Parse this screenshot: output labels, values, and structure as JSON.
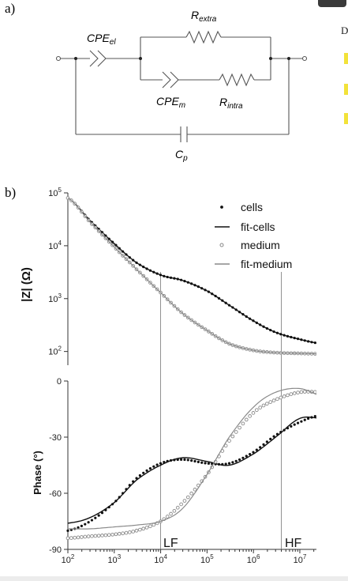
{
  "panel_a": {
    "label": "a)",
    "cpe_el": {
      "main": "CPE",
      "sub": "el"
    },
    "r_extra": {
      "main": "R",
      "sub": "extra"
    },
    "cpe_m": {
      "main": "CPE",
      "sub": "m"
    },
    "r_intra": {
      "main": "R",
      "sub": "intra"
    },
    "c_p": {
      "main": "C",
      "sub": "p"
    }
  },
  "panel_b": {
    "label": "b)"
  },
  "markers": {
    "lf": "LF",
    "hf": "HF"
  },
  "side": {
    "letter": "D"
  },
  "colors": {
    "cells": "#111111",
    "medium": "#8a8a8a",
    "fit_cells": "#111111",
    "fit_medium": "#8a8a8a"
  },
  "chart_data": [
    {
      "type": "scatter",
      "xlabel": "",
      "ylabel": "|Z| (Ω)",
      "x_scale": "log",
      "y_scale": "log",
      "xlim": [
        100,
        30000000
      ],
      "ylim": [
        50,
        100000
      ],
      "yticks": [
        "10^5",
        "10^4",
        "10^3",
        "10^2"
      ],
      "legend_placement": "top-right",
      "legend": [
        "cells",
        "fit-cells",
        "medium",
        "fit-medium"
      ],
      "series": [
        {
          "name": "cells",
          "kind": "points",
          "x": [
            100,
            300,
            1000,
            3000,
            10000,
            30000,
            100000,
            300000,
            1000000,
            3000000,
            10000000,
            30000000
          ],
          "y": [
            80000,
            30000,
            11000,
            4800,
            2800,
            2200,
            1400,
            750,
            380,
            230,
            170,
            140
          ]
        },
        {
          "name": "fit-cells",
          "kind": "line",
          "x": [
            100,
            300,
            1000,
            3000,
            10000,
            30000,
            100000,
            300000,
            1000000,
            3000000,
            10000000,
            30000000
          ],
          "y": [
            80000,
            30000,
            11000,
            4800,
            2800,
            2200,
            1400,
            750,
            380,
            230,
            170,
            140
          ]
        },
        {
          "name": "medium",
          "kind": "points",
          "x": [
            100,
            300,
            1000,
            3000,
            10000,
            30000,
            100000,
            300000,
            1000000,
            3000000,
            10000000,
            30000000
          ],
          "y": [
            80000,
            28000,
            9500,
            3600,
            1300,
            520,
            250,
            140,
            105,
            95,
            92,
            90
          ]
        },
        {
          "name": "fit-medium",
          "kind": "line",
          "x": [
            100,
            300,
            1000,
            3000,
            10000,
            30000,
            100000,
            300000,
            1000000,
            3000000,
            10000000,
            30000000
          ],
          "y": [
            80000,
            28000,
            9500,
            3600,
            1300,
            520,
            250,
            140,
            105,
            95,
            92,
            90
          ]
        }
      ]
    },
    {
      "type": "scatter",
      "xlabel": "",
      "ylabel": "Phase (°)",
      "x_scale": "log",
      "xlim": [
        100,
        30000000
      ],
      "ylim": [
        -90,
        0
      ],
      "xticks": [
        "10^2",
        "10^3",
        "10^4",
        "10^5",
        "10^6",
        "10^7"
      ],
      "yticks": [
        "0",
        "-30",
        "-60",
        "-90"
      ],
      "vertical_markers": [
        {
          "x": 10000,
          "label": "LF"
        },
        {
          "x": 4000000,
          "label": "HF"
        }
      ],
      "series": [
        {
          "name": "cells",
          "kind": "points",
          "x": [
            100,
            300,
            1000,
            3000,
            10000,
            30000,
            100000,
            300000,
            1000000,
            3000000,
            10000000,
            30000000
          ],
          "y": [
            -80,
            -75,
            -65,
            -52,
            -44,
            -42,
            -44,
            -44,
            -38,
            -29,
            -22,
            -18
          ]
        },
        {
          "name": "fit-cells",
          "kind": "line",
          "x": [
            100,
            300,
            1000,
            3000,
            10000,
            30000,
            100000,
            300000,
            1000000,
            3000000,
            10000000,
            30000000
          ],
          "y": [
            -76,
            -73,
            -65,
            -53,
            -45,
            -41,
            -43,
            -45,
            -39,
            -30,
            -20,
            -20
          ]
        },
        {
          "name": "medium",
          "kind": "points",
          "x": [
            100,
            300,
            1000,
            3000,
            10000,
            30000,
            100000,
            300000,
            1000000,
            3000000,
            10000000,
            30000000
          ],
          "y": [
            -84,
            -83,
            -82,
            -80,
            -75,
            -65,
            -50,
            -32,
            -17,
            -10,
            -6,
            -6
          ]
        },
        {
          "name": "fit-medium",
          "kind": "line",
          "x": [
            100,
            300,
            1000,
            3000,
            10000,
            30000,
            100000,
            300000,
            1000000,
            3000000,
            10000000,
            30000000
          ],
          "y": [
            -79,
            -79,
            -78,
            -77,
            -75,
            -68,
            -50,
            -30,
            -14,
            -6,
            -4,
            -8
          ]
        }
      ]
    }
  ]
}
